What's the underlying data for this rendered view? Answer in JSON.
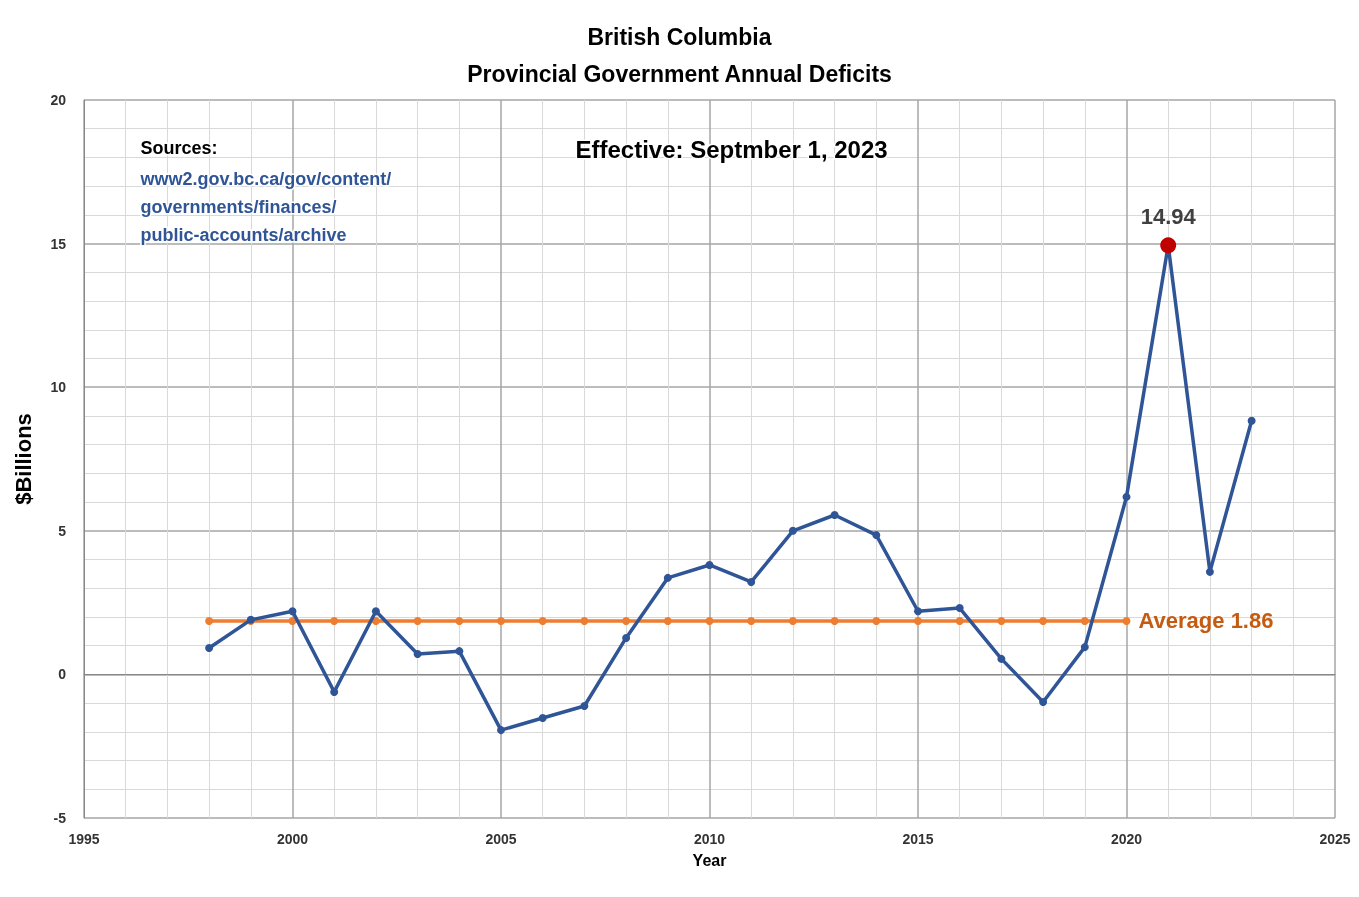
{
  "chart_data": {
    "type": "line",
    "title": "British Columbia",
    "subtitle": "Provincial Government Annual Deficits",
    "xlabel": "Year",
    "ylabel": "$Billions",
    "x": [
      1998,
      1999,
      2000,
      2001,
      2002,
      2003,
      2004,
      2005,
      2006,
      2007,
      2008,
      2009,
      2010,
      2011,
      2012,
      2013,
      2014,
      2015,
      2016,
      2017,
      2018,
      2019,
      2020,
      2021,
      2022,
      2023
    ],
    "series": [
      {
        "color": "#2f5597",
        "colors": [
          "#2f5597",
          "#2f5597",
          "#2f5597",
          "#2f5597",
          "#2f5597",
          "#2f5597",
          "#2f5597",
          "#2f5597",
          "#2f5597",
          "#2f5597",
          "#2f5597",
          "#2f5597",
          "#2f5597",
          "#2f5597",
          "#2f5597",
          "#2f5597",
          "#2f5597",
          "#2f5597",
          "#2f5597",
          "#2f5597",
          "#2f5597",
          "#2f5597",
          "#2f5597",
          "#c00000",
          "#2f5597",
          "#2f5597"
        ],
        "values": [
          0.92,
          1.9,
          2.2,
          -0.61,
          2.2,
          0.71,
          0.81,
          -1.94,
          -1.52,
          -1.1,
          1.27,
          3.36,
          3.81,
          3.22,
          5.0,
          5.55,
          4.85,
          2.2,
          2.31,
          0.54,
          -0.96,
          0.95,
          6.18,
          14.94,
          3.57,
          8.83
        ],
        "value_labels": [
          null,
          null,
          null,
          null,
          null,
          null,
          null,
          null,
          null,
          null,
          null,
          null,
          null,
          null,
          null,
          null,
          null,
          null,
          null,
          null,
          null,
          null,
          null,
          "14.94",
          null,
          null
        ]
      },
      {
        "name": "Average 1.86",
        "color": "#ed7d31",
        "x": [
          1998,
          1999,
          2000,
          2001,
          2002,
          2003,
          2004,
          2005,
          2006,
          2007,
          2008,
          2009,
          2010,
          2011,
          2012,
          2013,
          2014,
          2015,
          2016,
          2017,
          2018,
          2019,
          2020
        ],
        "values": [
          1.86,
          1.86,
          1.86,
          1.86,
          1.86,
          1.86,
          1.86,
          1.86,
          1.86,
          1.86,
          1.86,
          1.86,
          1.86,
          1.86,
          1.86,
          1.86,
          1.86,
          1.86,
          1.86,
          1.86,
          1.86,
          1.86,
          1.86
        ]
      }
    ],
    "xlim": [
      1995,
      2025
    ],
    "xticks": [
      1995,
      2000,
      2005,
      2010,
      2015,
      2020,
      2025
    ],
    "ylim": [
      -5,
      20
    ],
    "yticks": [
      -5,
      0,
      5,
      10,
      15,
      20
    ],
    "grid": true,
    "legend": false,
    "marker": "circle",
    "line_style": "solid",
    "annotations": [
      "Effective: Septmber 1, 2023",
      "Sources:",
      "www2.gov.bc.ca/gov/content/governments/finances/public-accounts/archive"
    ]
  }
}
